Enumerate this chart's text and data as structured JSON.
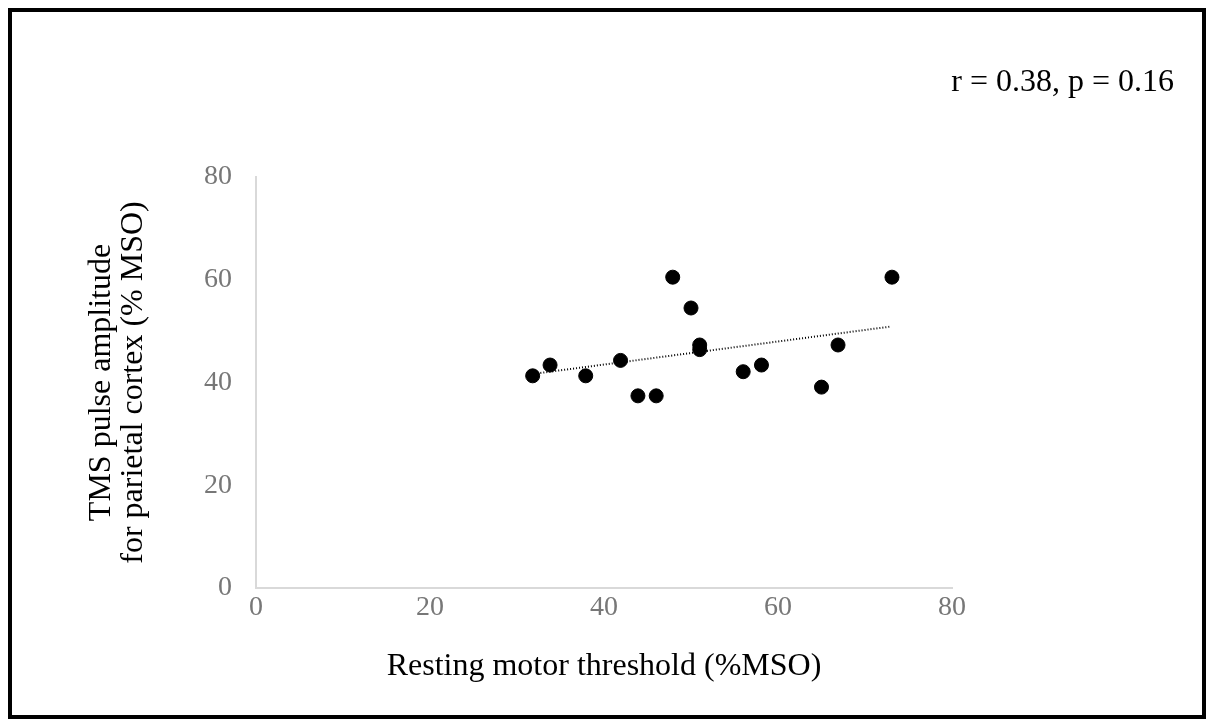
{
  "chart_data": {
    "type": "scatter",
    "xlabel": "Resting motor threshold (%MSO)",
    "ylabel": "TMS pulse amplitude\nfor parietal cortex (% MSO)",
    "annotations": [
      "r = 0.38, p = 0.16"
    ],
    "xlim": [
      0,
      80
    ],
    "ylim": [
      0,
      80
    ],
    "xticks": [
      0,
      20,
      40,
      60,
      80
    ],
    "yticks": [
      0,
      20,
      40,
      60,
      80
    ],
    "grid": false,
    "legend": false,
    "series": [
      {
        "color": "#000000",
        "marker": "circle",
        "x": [
          31.8,
          33.8,
          37.9,
          41.9,
          43.9,
          46.0,
          47.9,
          50.0,
          51.0,
          51.0,
          56.0,
          58.1,
          65.0,
          66.9,
          73.1
        ],
        "values": [
          41.3,
          43.4,
          41.3,
          44.3,
          37.4,
          37.4,
          60.5,
          54.5,
          47.3,
          46.4,
          42.1,
          43.4,
          39.1,
          47.3,
          60.5
        ]
      },
      {
        "type": "line",
        "color": "#000000",
        "marker": "none",
        "line_style": "dotted",
        "x": [
          32,
          73
        ],
        "values": [
          41.7,
          50.9
        ]
      }
    ]
  }
}
